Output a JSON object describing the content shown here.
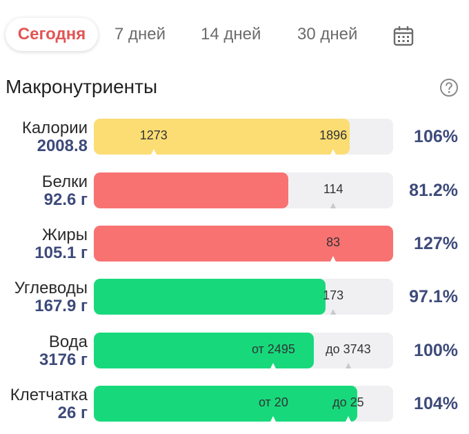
{
  "tabs": {
    "today": "Сегодня",
    "days7": "7 дней",
    "days14": "14 дней",
    "days30": "30 дней"
  },
  "header": {
    "title": "Макронутриенты"
  },
  "colors": {
    "yellow": "#fbdd74",
    "red": "#f87272",
    "green": "#17d97c",
    "track": "#f0f0f2",
    "active_tab": "#e25555",
    "value": "#3d4a7a"
  },
  "rows": [
    {
      "name": "Калории",
      "value": "2008.8",
      "percent": "106%",
      "fill_pct": 85.5,
      "color": "yellow",
      "markers": [
        {
          "text": "1273",
          "pos": 20
        },
        {
          "text": "1896",
          "pos": 80
        }
      ]
    },
    {
      "name": "Белки",
      "value": "92.6 г",
      "percent": "81.2%",
      "fill_pct": 65.0,
      "color": "red",
      "markers": [
        {
          "text": "114",
          "pos": 80
        }
      ]
    },
    {
      "name": "Жиры",
      "value": "105.1 г",
      "percent": "127%",
      "fill_pct": 100,
      "color": "red",
      "markers": [
        {
          "text": "83",
          "pos": 80
        }
      ]
    },
    {
      "name": "Углеводы",
      "value": "167.9 г",
      "percent": "97.1%",
      "fill_pct": 77.5,
      "color": "green",
      "markers": [
        {
          "text": "173",
          "pos": 80
        }
      ]
    },
    {
      "name": "Вода",
      "value": "3176 г",
      "percent": "100%",
      "fill_pct": 73.5,
      "color": "green",
      "markers": [
        {
          "text": "от 2495",
          "pos": 60
        },
        {
          "text": "до 3743",
          "pos": 85
        }
      ]
    },
    {
      "name": "Клетчатка",
      "value": "26 г",
      "percent": "104%",
      "fill_pct": 88.0,
      "color": "green",
      "markers": [
        {
          "text": "от 20",
          "pos": 60
        },
        {
          "text": "до 25",
          "pos": 85
        }
      ]
    }
  ]
}
